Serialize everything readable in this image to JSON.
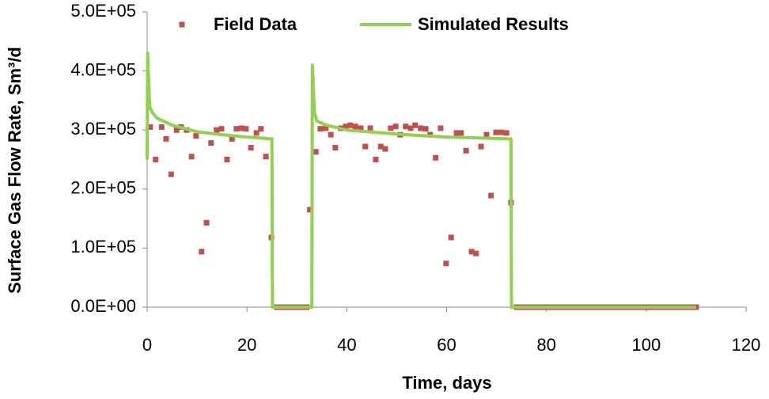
{
  "chart_data": {
    "type": "scatter",
    "xlabel": "Time, days",
    "ylabel": "Surface Gas Flow Rate, Sm³/d",
    "xlim": [
      0,
      120
    ],
    "xticks": [
      0,
      20,
      40,
      60,
      80,
      100,
      120
    ],
    "ylim": [
      0,
      500000
    ],
    "yticks": [
      {
        "value": 0,
        "label": "0.0E+00"
      },
      {
        "value": 100000,
        "label": "1.0E+05"
      },
      {
        "value": 200000,
        "label": "2.0E+05"
      },
      {
        "value": 300000,
        "label": "3.0E+05"
      },
      {
        "value": 400000,
        "label": "4.0E+05"
      },
      {
        "value": 500000,
        "label": "5.0E+05"
      }
    ],
    "grid": false,
    "legend": "top",
    "series": [
      {
        "name": "Field Data",
        "type": "scatter",
        "color": "#c0504d",
        "x": [
          0.6,
          1.7,
          2.9,
          3.8,
          4.8,
          5.9,
          6.8,
          7.9,
          8.9,
          9.8,
          10.9,
          11.9,
          12.8,
          13.9,
          14.9,
          16,
          17,
          17.9,
          18.9,
          19.8,
          20.8,
          21.9,
          22.8,
          23.8,
          24.9,
          26,
          27,
          28,
          29,
          30,
          31,
          32,
          32.6,
          33.8,
          34.7,
          35.8,
          36.8,
          37.7,
          38.8,
          39.8,
          40.7,
          41.7,
          42.8,
          43.7,
          44.7,
          45.8,
          46.8,
          47.7,
          48.8,
          49.8,
          50.7,
          51.8,
          52.8,
          53.7,
          54.8,
          55.8,
          56.7,
          57.8,
          58.8,
          59.9,
          60.9,
          62,
          62.9,
          63.9,
          65,
          65.9,
          66.9,
          68,
          68.9,
          69.9,
          71,
          72,
          72.9,
          74,
          75,
          76,
          77,
          78,
          79,
          80,
          81,
          82,
          83,
          84,
          85,
          86,
          87,
          88,
          89,
          90,
          91,
          92,
          93,
          94,
          95,
          96,
          97,
          98,
          99,
          100,
          101,
          102,
          103,
          104,
          105,
          106,
          107,
          108,
          109,
          110
        ],
        "values": [
          305000,
          250000,
          305000,
          285000,
          225000,
          300000,
          305000,
          300000,
          255000,
          290000,
          94000,
          143000,
          278000,
          300000,
          302000,
          250000,
          285000,
          302000,
          303000,
          302000,
          270000,
          295000,
          302000,
          255000,
          118000,
          0,
          0,
          0,
          0,
          0,
          0,
          0,
          165000,
          263000,
          302000,
          303000,
          292000,
          270000,
          303000,
          306000,
          308000,
          306000,
          303000,
          272000,
          303000,
          250000,
          272000,
          268000,
          303000,
          306000,
          292000,
          306000,
          303000,
          308000,
          303000,
          302000,
          292000,
          253000,
          303000,
          74000,
          118000,
          295000,
          295000,
          265000,
          94000,
          91000,
          272000,
          292000,
          189000,
          296000,
          296000,
          295000,
          177000,
          0,
          0,
          0,
          0,
          0,
          0,
          0,
          0,
          0,
          0,
          0,
          0,
          0,
          0,
          0,
          0,
          0,
          0,
          0,
          0,
          0,
          0,
          0,
          0,
          0,
          0,
          0,
          0,
          0,
          0,
          0,
          0,
          0,
          0,
          0,
          0,
          0
        ]
      },
      {
        "name": "Simulated Results",
        "type": "line",
        "color": "#92d050",
        "x": [
          0,
          0.1,
          0.5,
          1,
          2,
          5,
          10,
          15,
          20,
          25,
          25.1,
          33,
          33.1,
          33.5,
          34,
          36,
          40,
          50,
          60,
          72.9,
          73,
          110
        ],
        "values": [
          250000,
          430000,
          340000,
          330000,
          320000,
          308000,
          297000,
          292000,
          288000,
          285000,
          0,
          0,
          410000,
          330000,
          315000,
          308000,
          300000,
          293000,
          288000,
          285000,
          0,
          0
        ]
      }
    ]
  }
}
